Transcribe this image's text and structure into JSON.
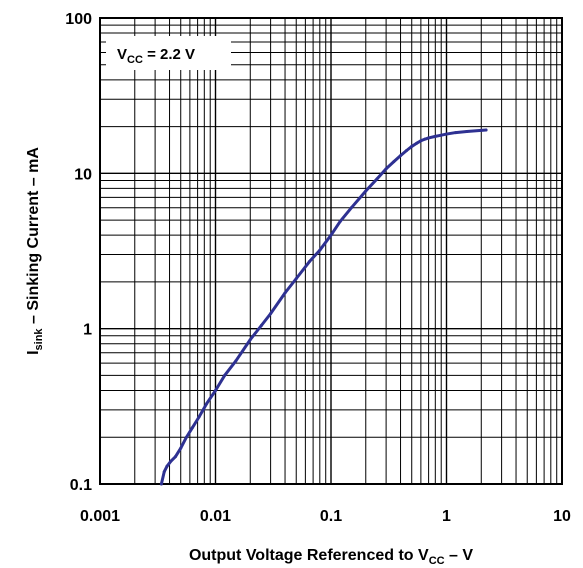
{
  "chart_data": {
    "type": "line",
    "x_scale": "log",
    "y_scale": "log",
    "xlim": [
      0.001,
      10
    ],
    "ylim": [
      0.1,
      100
    ],
    "grid": true,
    "x_ticks": [
      "0.001",
      "0.01",
      "0.1",
      "1",
      "10"
    ],
    "y_ticks": [
      "0.1",
      "1",
      "10",
      "100"
    ],
    "xlabel": {
      "main": "Output Voltage Referenced to V",
      "sub": "CC",
      "tail": " – V"
    },
    "ylabel": {
      "main": "I",
      "sub": "sink",
      "tail": " – Sinking Current – mA"
    },
    "annotation": {
      "main": "V",
      "sub": "CC",
      "tail": " = 2.2 V"
    },
    "series": [
      {
        "color": "#2e3192",
        "x": [
          0.0034,
          0.0036,
          0.0038,
          0.0041,
          0.0045,
          0.005,
          0.0056,
          0.0063,
          0.0072,
          0.0084,
          0.01,
          0.012,
          0.015,
          0.02,
          0.025,
          0.03,
          0.04,
          0.05,
          0.065,
          0.08,
          0.1,
          0.12,
          0.15,
          0.2,
          0.25,
          0.3,
          0.35,
          0.4,
          0.45,
          0.5,
          0.55,
          0.6,
          0.65,
          0.7,
          0.8,
          0.9,
          1.0,
          1.2,
          1.5,
          2.0,
          2.2
        ],
        "y": [
          0.1,
          0.12,
          0.13,
          0.14,
          0.15,
          0.17,
          0.2,
          0.23,
          0.27,
          0.33,
          0.4,
          0.5,
          0.62,
          0.85,
          1.05,
          1.25,
          1.7,
          2.1,
          2.7,
          3.2,
          4.0,
          4.9,
          6.0,
          7.7,
          9.2,
          10.7,
          11.9,
          13.0,
          14.0,
          14.9,
          15.6,
          16.2,
          16.6,
          16.9,
          17.3,
          17.6,
          17.9,
          18.3,
          18.6,
          18.9,
          19.0
        ]
      }
    ]
  }
}
